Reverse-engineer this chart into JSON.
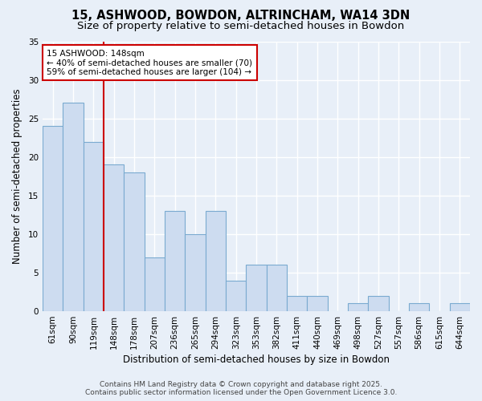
{
  "title": "15, ASHWOOD, BOWDON, ALTRINCHAM, WA14 3DN",
  "subtitle": "Size of property relative to semi-detached houses in Bowdon",
  "xlabel": "Distribution of semi-detached houses by size in Bowdon",
  "ylabel": "Number of semi-detached properties",
  "categories": [
    "61sqm",
    "90sqm",
    "119sqm",
    "148sqm",
    "178sqm",
    "207sqm",
    "236sqm",
    "265sqm",
    "294sqm",
    "323sqm",
    "353sqm",
    "382sqm",
    "411sqm",
    "440sqm",
    "469sqm",
    "498sqm",
    "527sqm",
    "557sqm",
    "586sqm",
    "615sqm",
    "644sqm"
  ],
  "values": [
    24,
    27,
    22,
    19,
    18,
    7,
    13,
    10,
    13,
    4,
    6,
    6,
    2,
    2,
    0,
    1,
    2,
    0,
    1,
    0,
    1
  ],
  "bar_color": "#cddcf0",
  "bar_edge_color": "#7aaad0",
  "highlight_index": 3,
  "red_line_color": "#cc0000",
  "annotation_line1": "15 ASHWOOD: 148sqm",
  "annotation_line2": "← 40% of semi-detached houses are smaller (70)",
  "annotation_line3": "59% of semi-detached houses are larger (104) →",
  "annotation_box_color": "#ffffff",
  "annotation_box_edge_color": "#cc0000",
  "ylim": [
    0,
    35
  ],
  "yticks": [
    0,
    5,
    10,
    15,
    20,
    25,
    30,
    35
  ],
  "background_color": "#e8eff8",
  "plot_background_color": "#e8eff8",
  "grid_color": "#ffffff",
  "title_fontsize": 10.5,
  "subtitle_fontsize": 9.5,
  "label_fontsize": 8.5,
  "tick_fontsize": 7.5,
  "annot_fontsize": 7.5,
  "footer_text": "Contains HM Land Registry data © Crown copyright and database right 2025.\nContains public sector information licensed under the Open Government Licence 3.0."
}
